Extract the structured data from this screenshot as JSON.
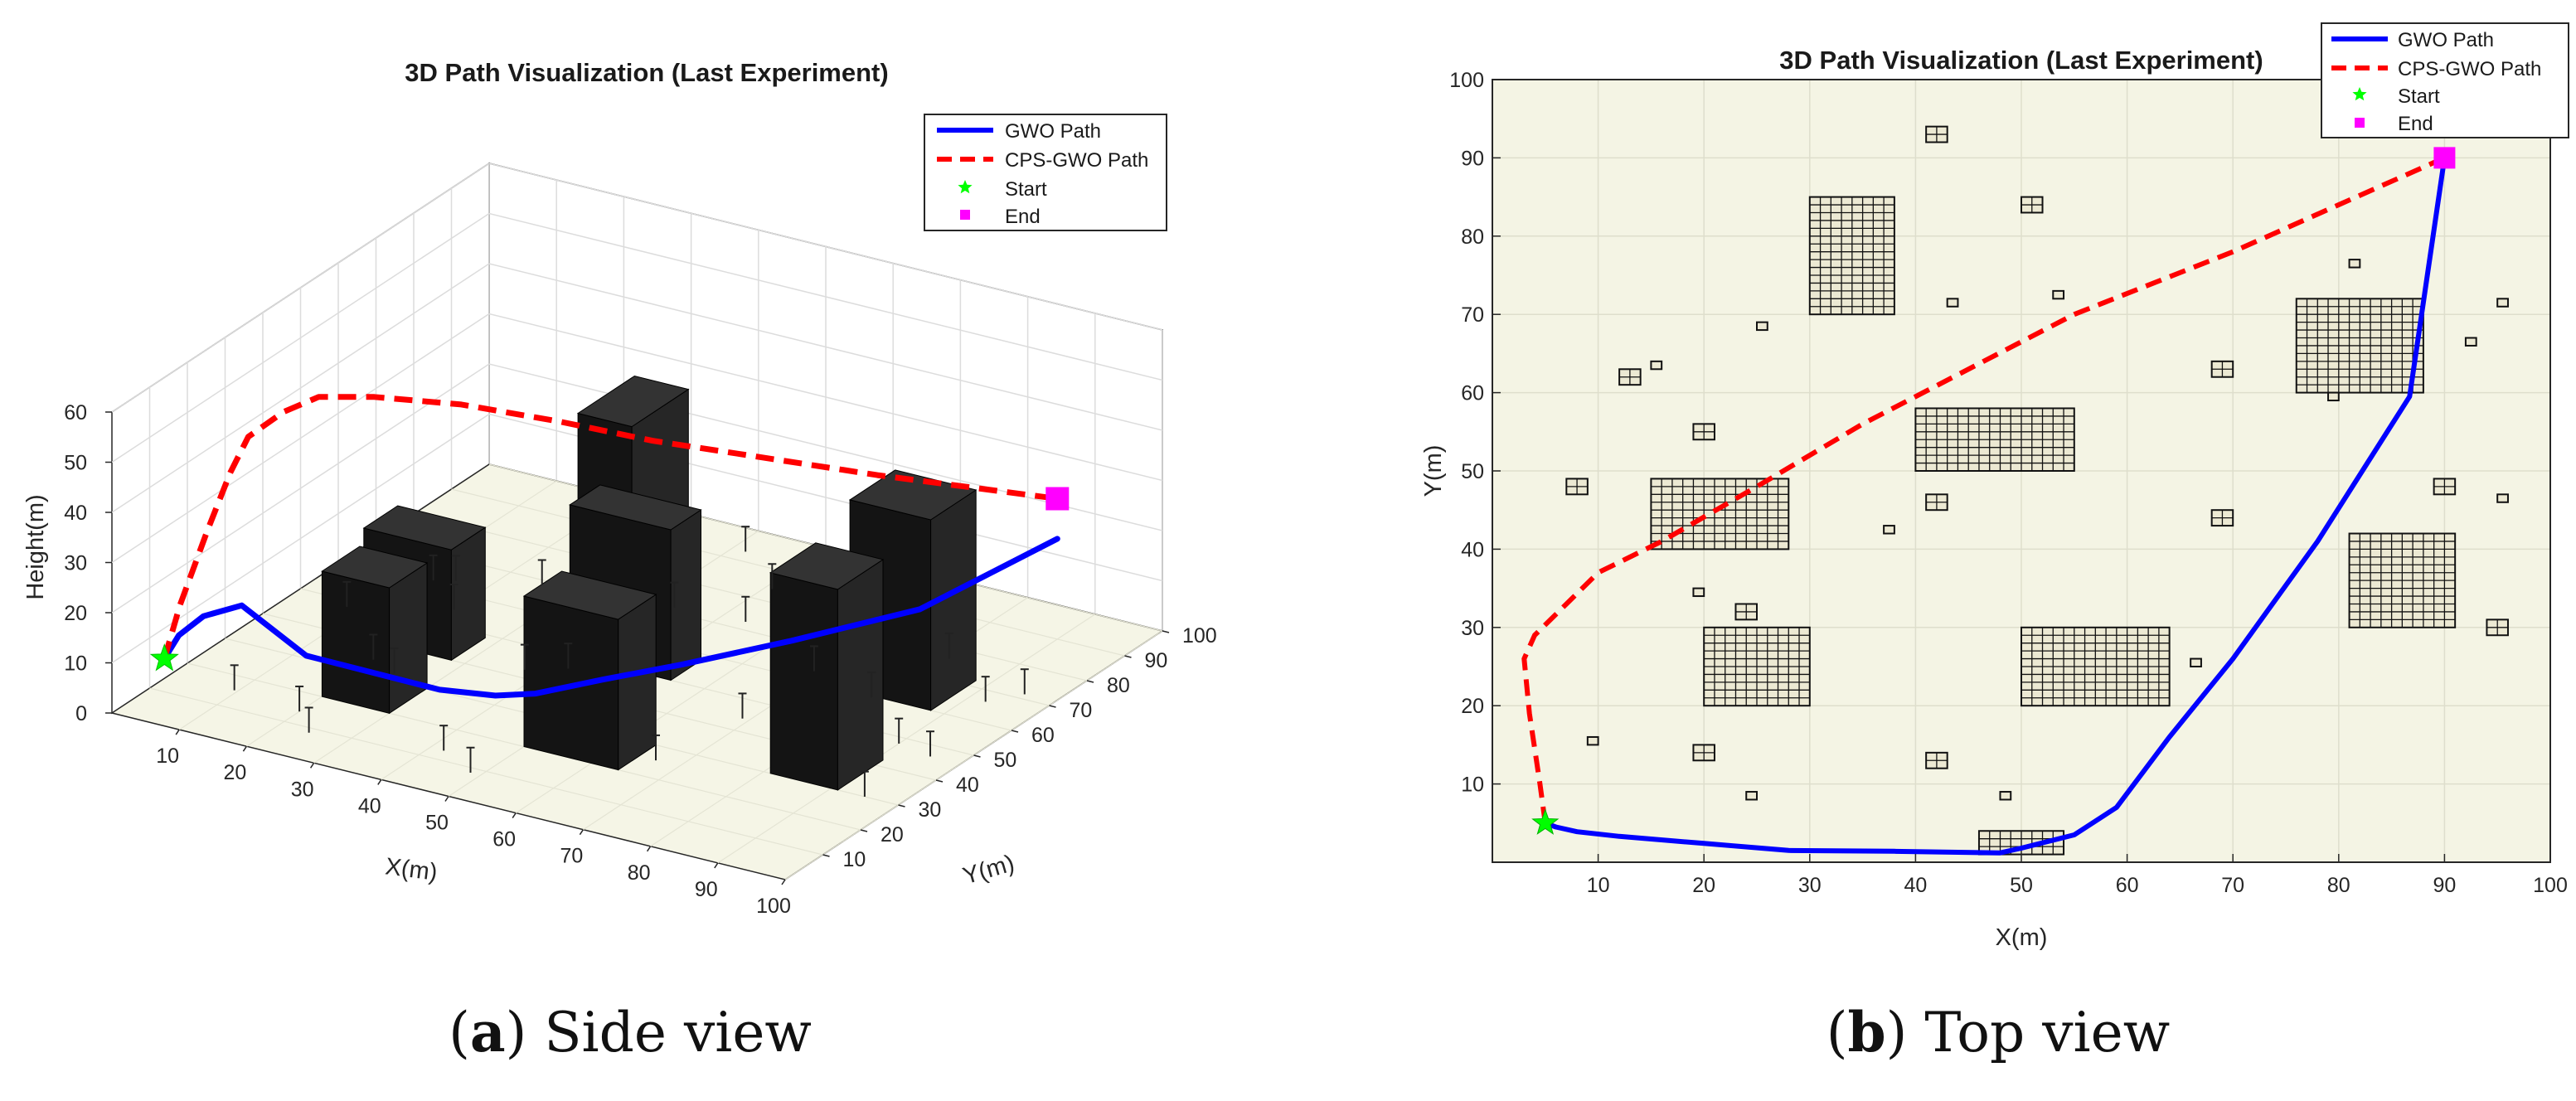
{
  "chart_data": [
    {
      "type": "line3d",
      "title": "3D Path Visualization (Last Experiment)",
      "xlabel": "X(m)",
      "ylabel": "Y(m)",
      "zlabel": "Height(m)",
      "xlim": [
        0,
        100
      ],
      "ylim": [
        0,
        100
      ],
      "zlim": [
        0,
        60
      ],
      "xticks": [
        10,
        20,
        30,
        40,
        50,
        60,
        70,
        80,
        90,
        100
      ],
      "yticks": [
        10,
        20,
        30,
        40,
        50,
        60,
        70,
        80,
        90,
        100
      ],
      "zticks": [
        0,
        10,
        20,
        30,
        40,
        50,
        60
      ],
      "grid": true,
      "legend_position": "top-right",
      "legend": [
        "GWO Path",
        "CPS-GWO Path",
        "Start",
        "End"
      ],
      "series": [
        {
          "name": "GWO Path",
          "color": "#0000ff",
          "style": "solid",
          "x": [
            5,
            6,
            8,
            12,
            28,
            48,
            55,
            59,
            64,
            70,
            78,
            86.7,
            90
          ],
          "y": [
            5,
            7,
            10,
            13,
            1.5,
            1.2,
            3.5,
            7,
            16,
            26,
            41,
            59.5,
            90
          ],
          "z": [
            10,
            14,
            17,
            19,
            20,
            20,
            20,
            20,
            20,
            20,
            20,
            20,
            20
          ]
        },
        {
          "name": "CPS-GWO Path",
          "color": "#ff0000",
          "style": "dashed",
          "x": [
            5,
            4.5,
            3.5,
            3,
            4,
            7,
            10,
            16,
            25,
            35,
            45,
            55,
            70,
            90
          ],
          "y": [
            5,
            10,
            19,
            26,
            29,
            33,
            37,
            41,
            48,
            56,
            63,
            70,
            78,
            90
          ],
          "z": [
            10,
            18,
            28,
            36,
            42,
            46,
            48,
            48,
            46,
            42,
            38,
            35,
            32,
            28
          ]
        }
      ],
      "markers": [
        {
          "name": "Start",
          "shape": "star",
          "color": "#00ff00",
          "x": 5,
          "y": 5,
          "z": 10
        },
        {
          "name": "End",
          "shape": "square",
          "color": "#ff00ff",
          "x": 90,
          "y": 90,
          "z": 28
        }
      ]
    },
    {
      "type": "line",
      "title": "3D Path Visualization (Last Experiment)",
      "xlabel": "X(m)",
      "ylabel": "Y(m)",
      "xlim": [
        0,
        100
      ],
      "ylim": [
        0,
        100
      ],
      "xticks": [
        10,
        20,
        30,
        40,
        50,
        60,
        70,
        80,
        90,
        100
      ],
      "yticks": [
        10,
        20,
        30,
        40,
        50,
        60,
        70,
        80,
        90,
        100
      ],
      "grid": true,
      "legend_position": "top-right",
      "legend": [
        "GWO Path",
        "CPS-GWO Path",
        "Start",
        "End"
      ],
      "series": [
        {
          "name": "GWO Path",
          "color": "#0000ff",
          "style": "solid",
          "x": [
            5,
            6,
            8,
            12,
            20,
            28,
            38,
            48,
            50,
            55,
            59,
            64,
            70,
            78,
            86.7,
            90
          ],
          "y": [
            5,
            4.5,
            3.9,
            3.3,
            2.4,
            1.5,
            1.4,
            1.2,
            1.8,
            3.5,
            7,
            16,
            26,
            41,
            59.5,
            90
          ]
        },
        {
          "name": "CPS-GWO Path",
          "color": "#ff0000",
          "style": "dashed",
          "x": [
            5,
            4.5,
            3.5,
            3,
            4,
            7,
            10,
            16,
            25,
            35,
            45,
            55,
            70,
            80,
            90
          ],
          "y": [
            5,
            10,
            19,
            26,
            29,
            33,
            37,
            41,
            48,
            56,
            63,
            70,
            78,
            84,
            90
          ]
        }
      ],
      "markers": [
        {
          "name": "Start",
          "shape": "star",
          "color": "#00ff00",
          "x": 5,
          "y": 5
        },
        {
          "name": "End",
          "shape": "square",
          "color": "#ff00ff",
          "x": 90,
          "y": 90
        }
      ],
      "obstacles": [
        {
          "x0": 46,
          "x1": 54,
          "y0": 1,
          "y1": 4
        },
        {
          "x0": 41,
          "x1": 43,
          "y0": 92,
          "y1": 94
        },
        {
          "x0": 50,
          "x1": 52,
          "y0": 83,
          "y1": 85
        },
        {
          "x0": 30,
          "x1": 38,
          "y0": 70,
          "y1": 85
        },
        {
          "x0": 43,
          "x1": 44,
          "y0": 71,
          "y1": 72
        },
        {
          "x0": 53,
          "x1": 54,
          "y0": 72,
          "y1": 73
        },
        {
          "x0": 25,
          "x1": 26,
          "y0": 68,
          "y1": 69
        },
        {
          "x0": 81,
          "x1": 82,
          "y0": 76,
          "y1": 77
        },
        {
          "x0": 76,
          "x1": 88,
          "y0": 60,
          "y1": 72
        },
        {
          "x0": 95,
          "x1": 96,
          "y0": 71,
          "y1": 72
        },
        {
          "x0": 92,
          "x1": 93,
          "y0": 66,
          "y1": 67
        },
        {
          "x0": 68,
          "x1": 70,
          "y0": 62,
          "y1": 64
        },
        {
          "x0": 12,
          "x1": 14,
          "y0": 61,
          "y1": 63
        },
        {
          "x0": 15,
          "x1": 16,
          "y0": 63,
          "y1": 64
        },
        {
          "x0": 19,
          "x1": 21,
          "y0": 54,
          "y1": 56
        },
        {
          "x0": 40,
          "x1": 55,
          "y0": 50,
          "y1": 58
        },
        {
          "x0": 7,
          "x1": 9,
          "y0": 47,
          "y1": 49
        },
        {
          "x0": 15,
          "x1": 28,
          "y0": 40,
          "y1": 49
        },
        {
          "x0": 41,
          "x1": 43,
          "y0": 45,
          "y1": 47
        },
        {
          "x0": 37,
          "x1": 38,
          "y0": 42,
          "y1": 43
        },
        {
          "x0": 68,
          "x1": 70,
          "y0": 43,
          "y1": 45
        },
        {
          "x0": 79,
          "x1": 80,
          "y0": 59,
          "y1": 60
        },
        {
          "x0": 89,
          "x1": 91,
          "y0": 47,
          "y1": 49
        },
        {
          "x0": 95,
          "x1": 96,
          "y0": 46,
          "y1": 47
        },
        {
          "x0": 81,
          "x1": 91,
          "y0": 30,
          "y1": 42
        },
        {
          "x0": 19,
          "x1": 20,
          "y0": 34,
          "y1": 35
        },
        {
          "x0": 23,
          "x1": 25,
          "y0": 31,
          "y1": 33
        },
        {
          "x0": 20,
          "x1": 30,
          "y0": 20,
          "y1": 30
        },
        {
          "x0": 50,
          "x1": 64,
          "y0": 20,
          "y1": 30
        },
        {
          "x0": 66,
          "x1": 67,
          "y0": 25,
          "y1": 26
        },
        {
          "x0": 94,
          "x1": 96,
          "y0": 29,
          "y1": 31
        },
        {
          "x0": 9,
          "x1": 10,
          "y0": 15,
          "y1": 16
        },
        {
          "x0": 19,
          "x1": 21,
          "y0": 13,
          "y1": 15
        },
        {
          "x0": 41,
          "x1": 43,
          "y0": 12,
          "y1": 14
        },
        {
          "x0": 24,
          "x1": 25,
          "y0": 8,
          "y1": 9
        },
        {
          "x0": 48,
          "x1": 49,
          "y0": 8,
          "y1": 9
        }
      ]
    }
  ],
  "captions": {
    "a_letter": "a",
    "a_text": "Side view",
    "b_letter": "b",
    "b_text": "Top view"
  },
  "colors": {
    "ground": "#f5f5e6",
    "plot_bg": "#f4f4e4",
    "gwo": "#0000ff",
    "cps": "#ff0000",
    "start": "#00ff00",
    "end": "#ff00ff",
    "building": "#141414"
  }
}
